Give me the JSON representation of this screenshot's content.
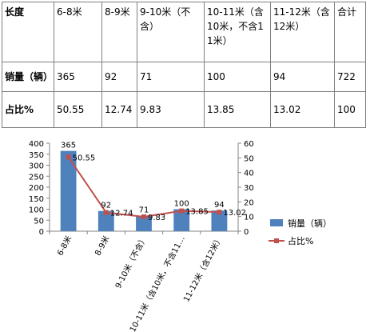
{
  "table": {
    "headers": [
      "长度",
      "6-8米",
      "8-9米",
      "9-10米（不含）",
      "10-11米（含10米，不含11米）",
      "11-12米（含12米）",
      "合计"
    ],
    "rows": [
      {
        "label": "销量（辆）",
        "cells": [
          "365",
          "92",
          "71",
          "100",
          "94",
          "722"
        ]
      },
      {
        "label": "占比%",
        "cells": [
          "50.55",
          "12.74",
          "9.83",
          "13.85",
          "13.02",
          "100"
        ]
      }
    ]
  },
  "chart_data": {
    "type": "bar",
    "categories": [
      "6-8米",
      "8-9米",
      "9-10米（不含）",
      "10-11米（含10米，不含11…",
      "11-12米（含12米）"
    ],
    "series": [
      {
        "name": "销量（辆）",
        "type": "bar",
        "axis": "left",
        "values": [
          365,
          92,
          71,
          100,
          94
        ],
        "color": "#4f81bd"
      },
      {
        "name": "占比%",
        "type": "line",
        "axis": "right",
        "values": [
          50.55,
          12.74,
          9.83,
          13.85,
          13.02
        ],
        "color": "#c0504d"
      }
    ],
    "y_left": {
      "range": [
        0,
        400
      ],
      "ticks": [
        "0",
        "50",
        "100",
        "150",
        "200",
        "250",
        "300",
        "350",
        "400"
      ]
    },
    "y_right": {
      "range": [
        0,
        60
      ],
      "ticks": [
        "0",
        "10",
        "20",
        "30",
        "40",
        "50",
        "60"
      ]
    },
    "data_labels": {
      "bar": [
        "365",
        "92",
        "71",
        "100",
        "94"
      ],
      "line": [
        "50.55",
        "12.74",
        "9.83",
        "13.85",
        "13.02"
      ]
    },
    "legend": {
      "position": "right"
    },
    "grid": false
  }
}
